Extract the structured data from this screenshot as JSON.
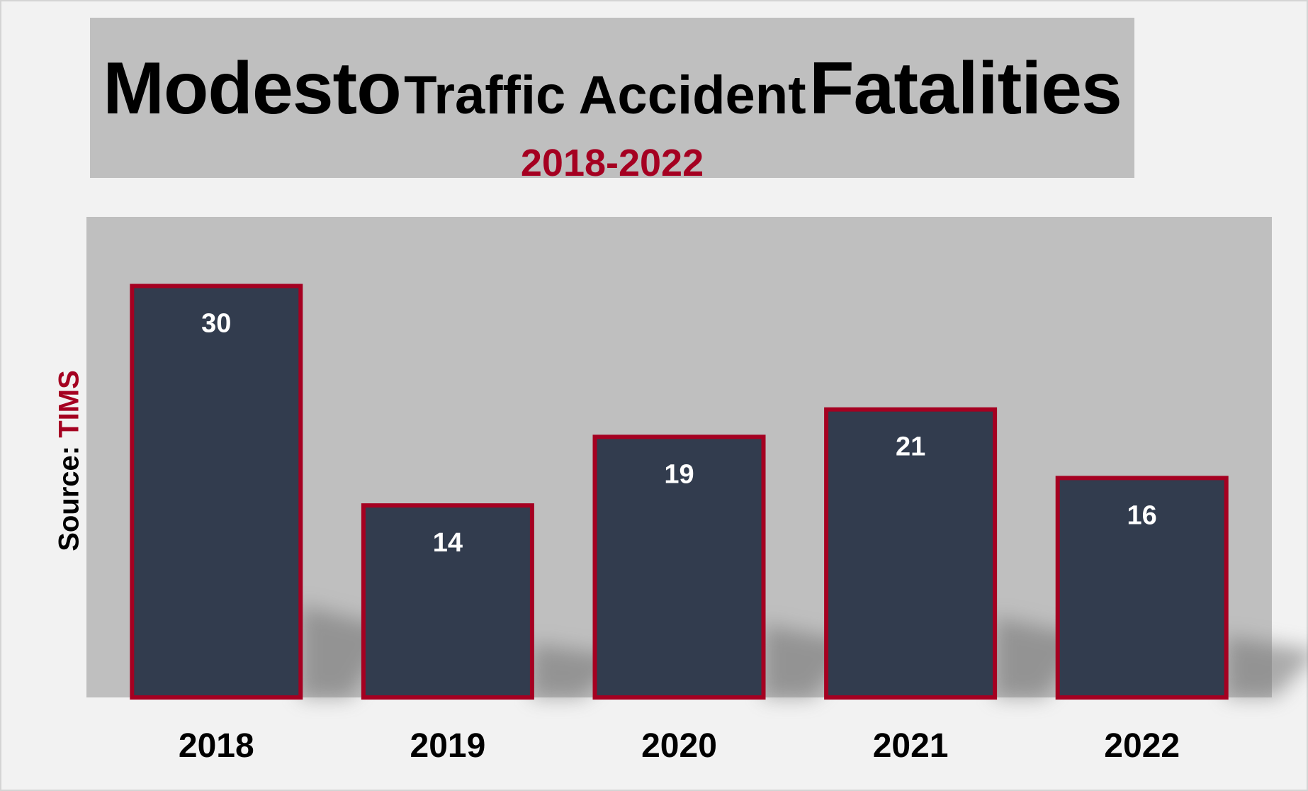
{
  "title": {
    "part1": "Modesto",
    "part2": "Traffic Accident",
    "part3": "Fatalities"
  },
  "subtitle": "2018-2022",
  "source": {
    "label": "Source:",
    "value": "TIMS"
  },
  "colors": {
    "background": "#f2f2f2",
    "panel": "#bfbfbf",
    "bar_fill": "#323c4e",
    "bar_border": "#a50021",
    "accent": "#a50021",
    "value_label": "#ffffff"
  },
  "chart_data": {
    "type": "bar",
    "categories": [
      "2018",
      "2019",
      "2020",
      "2021",
      "2022"
    ],
    "values": [
      30,
      14,
      19,
      21,
      16
    ],
    "title": "Modesto Traffic Accident Fatalities",
    "subtitle": "2018-2022",
    "xlabel": "",
    "ylabel": "",
    "ylim": [
      0,
      35
    ],
    "grid": false,
    "legend": "none",
    "data_labels": true
  }
}
